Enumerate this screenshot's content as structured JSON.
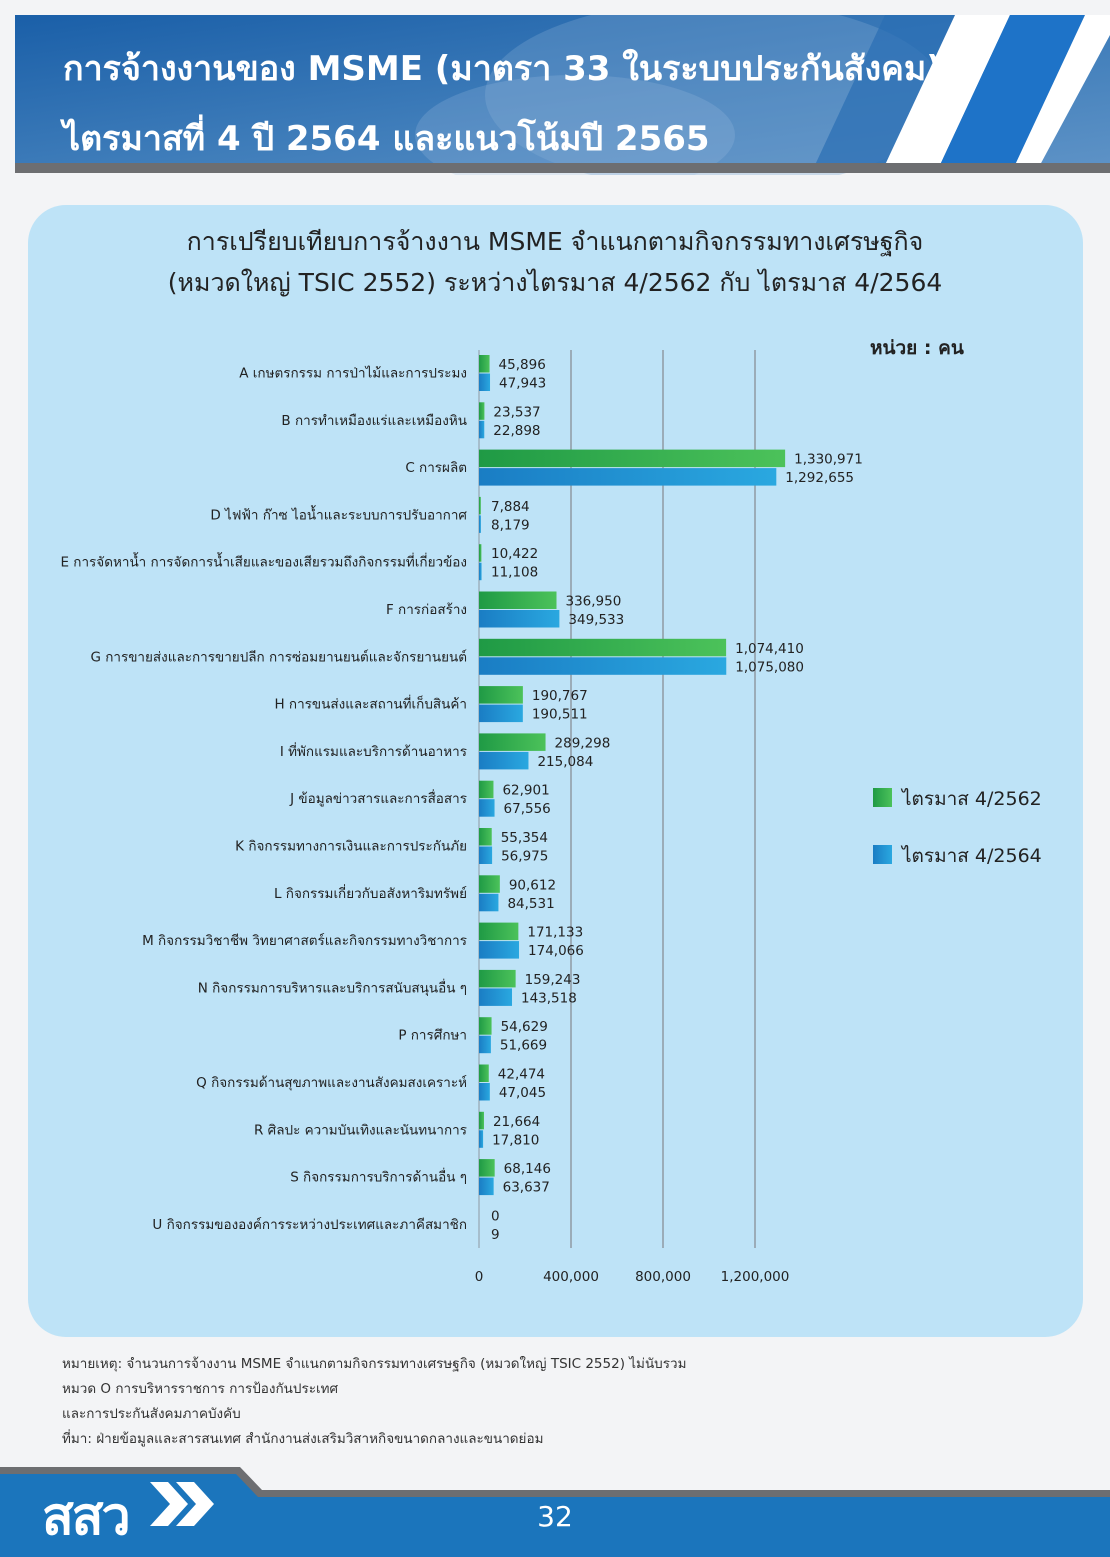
{
  "header": {
    "title_line1": "การจ้างงานของ MSME (มาตรา 33 ในระบบประกันสังคม)",
    "title_line2": "ไตรมาสที่ 4 ปี 2564 และแนวโน้มปี 2565"
  },
  "chart_data": {
    "type": "bar",
    "orientation": "horizontal",
    "title_line1": "การเปรียบเทียบการจ้างงาน MSME จำแนกตามกิจกรรมทางเศรษฐกิจ",
    "title_line2": "(หมวดใหญ่ TSIC 2552) ระหว่างไตรมาส 4/2562 กับ ไตรมาส 4/2564",
    "unit_label": "หน่วย : คน",
    "categories": [
      "A เกษตรกรรม การป่าไม้และการประมง",
      "B การทำเหมืองแร่และเหมืองหิน",
      "C การผลิต",
      "D ไฟฟ้า ก๊าซ ไอน้ำและระบบการปรับอากาศ",
      "E การจัดหาน้ำ การจัดการน้ำเสียและของเสียรวมถึงกิจกรรมที่เกี่ยวข้อง",
      "F การก่อสร้าง",
      "G การขายส่งและการขายปลีก การซ่อมยานยนต์และจักรยานยนต์",
      "H การขนส่งและสถานที่เก็บสินค้า",
      "I ที่พักแรมและบริการด้านอาหาร",
      "J ข้อมูลข่าวสารและการสื่อสาร",
      "K กิจกรรมทางการเงินและการประกันภัย",
      "L กิจกรรมเกี่ยวกับอสังหาริมทรัพย์",
      "M กิจกรรมวิชาชีพ วิทยาศาสตร์และกิจกรรมทางวิชาการ",
      "N กิจกรรมการบริหารและบริการสนับสนุนอื่น ๆ",
      "P การศึกษา",
      "Q กิจกรรมด้านสุขภาพและงานสังคมสงเคราะห์",
      "R ศิลปะ ความบันเทิงและนันทนาการ",
      "S กิจกรรมการบริการด้านอื่น ๆ",
      "U กิจกรรมขององค์การระหว่างประเทศและภาคีสมาชิก"
    ],
    "series": [
      {
        "name": "ไตรมาส 4/2562",
        "color": "#3db54a",
        "values": [
          45896,
          23537,
          1330971,
          7884,
          10422,
          336950,
          1074410,
          190767,
          289298,
          62901,
          55354,
          90612,
          171133,
          159243,
          54629,
          42474,
          21664,
          68146,
          0
        ],
        "labels": [
          "45,896",
          "23,537",
          "1,330,971",
          "7,884",
          "10,422",
          "336,950",
          "1,074,410",
          "190,767",
          "289,298",
          "62,901",
          "55,354",
          "90,612",
          "171,133",
          "159,243",
          "54,629",
          "42,474",
          "21,664",
          "68,146",
          "0"
        ]
      },
      {
        "name": "ไตรมาส 4/2564",
        "color": "#1f8fd1",
        "values": [
          47943,
          22898,
          1292655,
          8179,
          11108,
          349533,
          1075080,
          190511,
          215084,
          67556,
          56975,
          84531,
          174066,
          143518,
          51669,
          47045,
          17810,
          63637,
          9
        ],
        "labels": [
          "47,943",
          "22,898",
          "1,292,655",
          "8,179",
          "11,108",
          "349,533",
          "1,075,080",
          "190,511",
          "215,084",
          "67,556",
          "56,975",
          "84,531",
          "174,066",
          "143,518",
          "51,669",
          "47,045",
          "17,810",
          "63,637",
          "9"
        ]
      }
    ],
    "x_ticks": [
      0,
      400000,
      800000,
      1200000
    ],
    "x_tick_labels": [
      "0",
      "400,000",
      "800,000",
      "1,200,000"
    ],
    "xlim": [
      0,
      1400000
    ],
    "grid": true,
    "legend_position": "right"
  },
  "notes": {
    "line1": "หมายเหตุ: จำนวนการจ้างงาน MSME จำแนกตามกิจกรรมทางเศรษฐกิจ (หมวดใหญ่ TSIC 2552) ไม่นับรวม",
    "line2": "หมวด O การบริหารราชการ  การป้องกันประเทศ",
    "line3": "และการประกันสังคมภาคบังคับ",
    "line4": "ที่มา: ฝ่ายข้อมูลและสารสนเทศ สำนักงานส่งเสริมวิสาหกิจขนาดกลางและขนาดย่อม"
  },
  "footer": {
    "logo_text": "สสว",
    "page_number": "32"
  },
  "colors": {
    "header_blue": "#1565c0",
    "panel_bg": "#bee3f7",
    "footer_blue": "#1b75bc"
  }
}
